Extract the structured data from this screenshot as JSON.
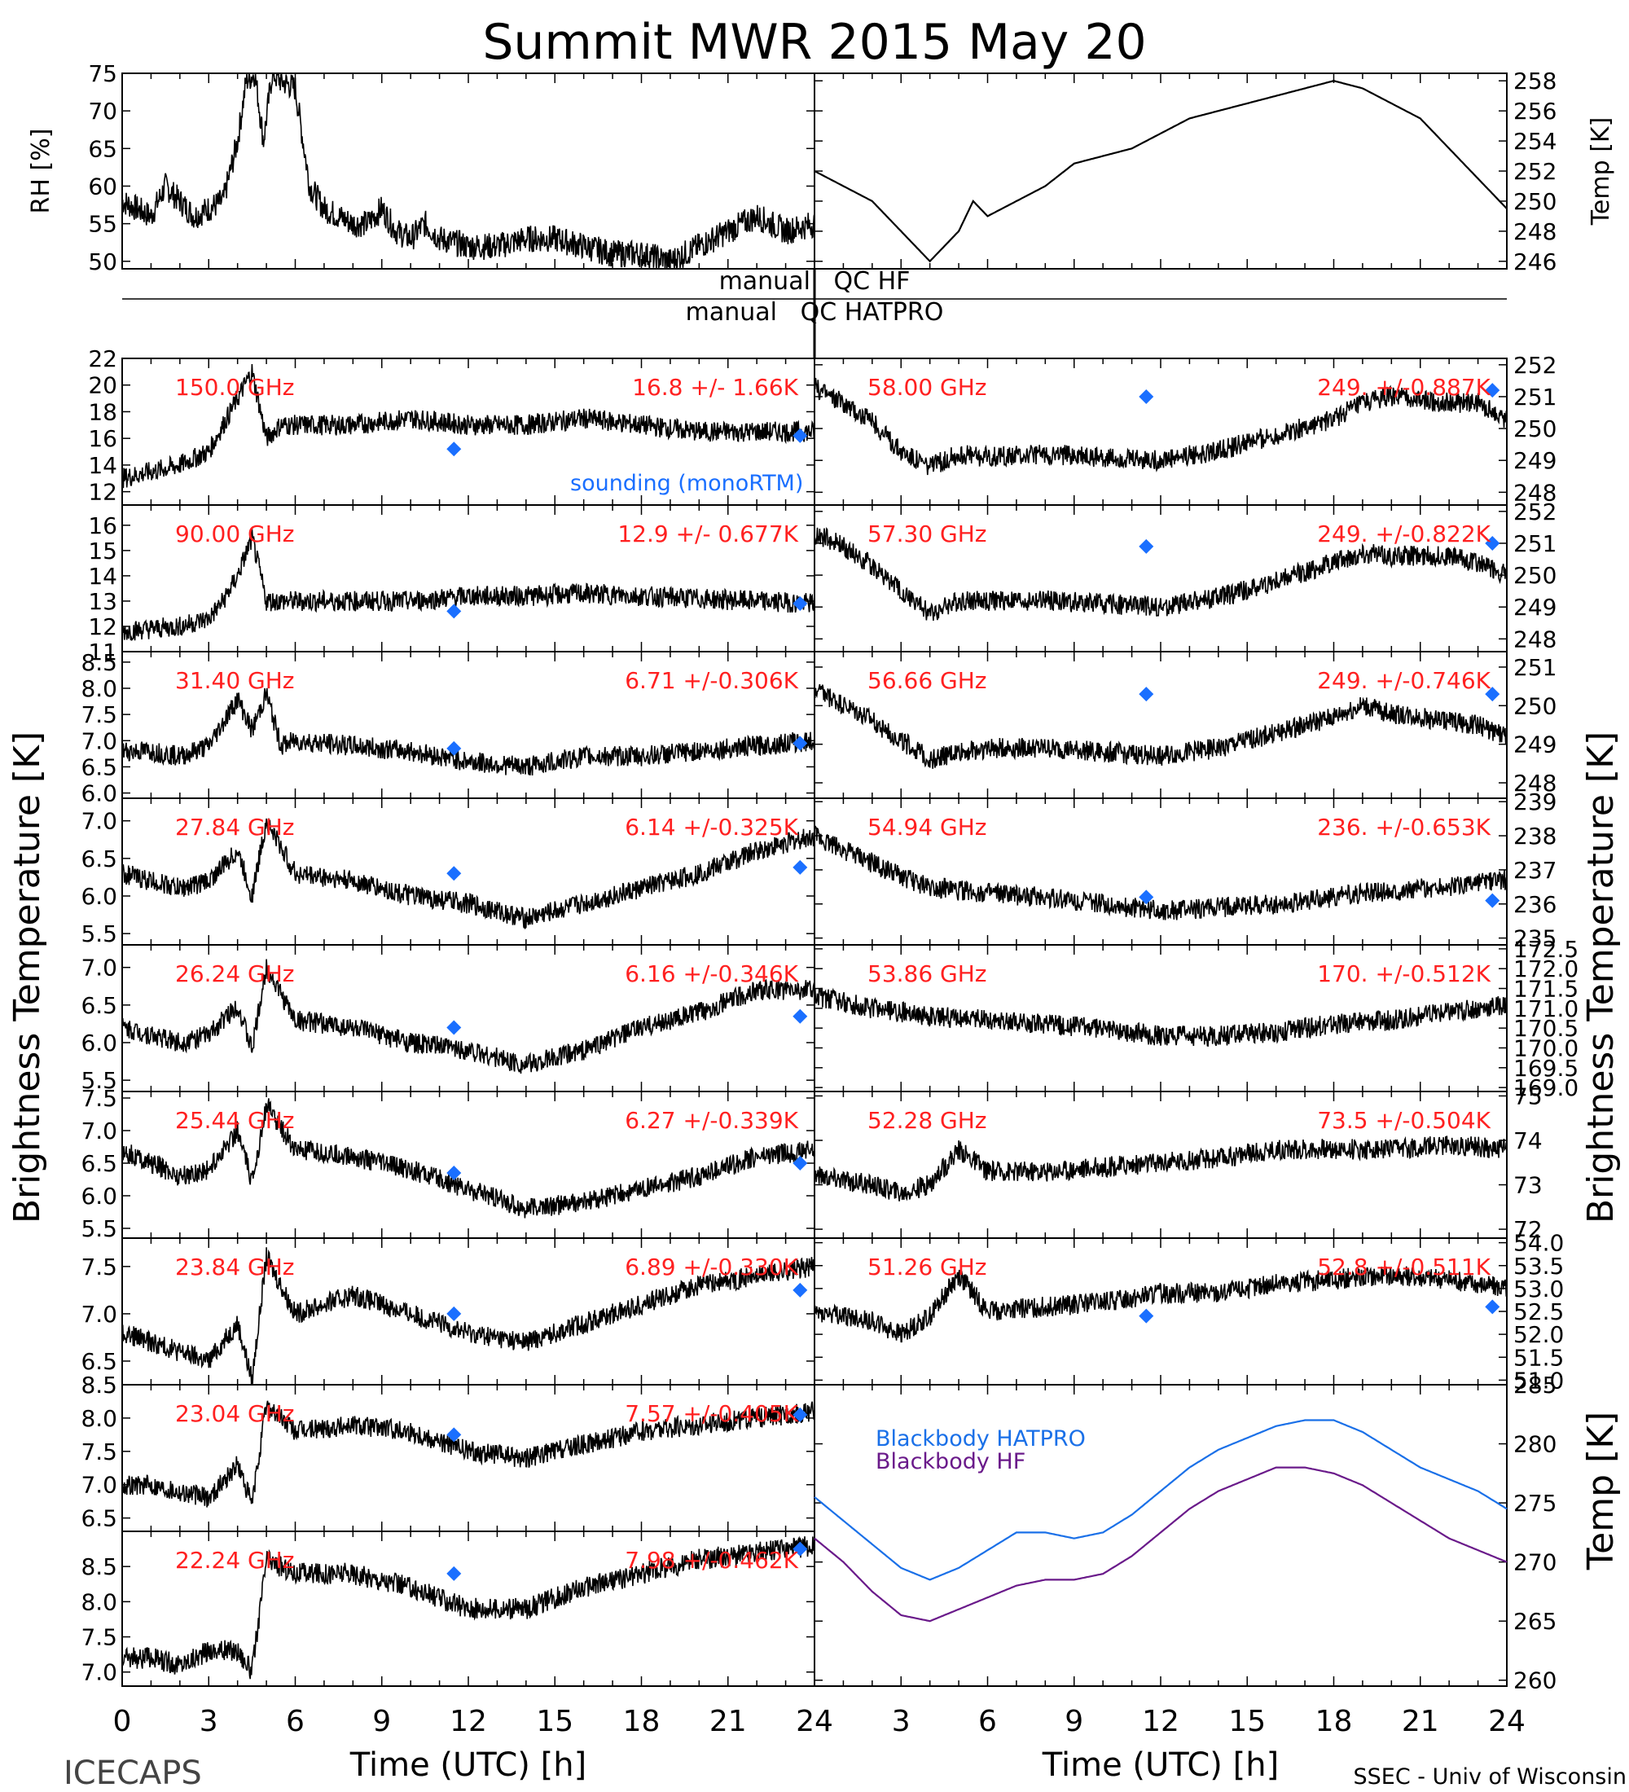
{
  "title": "Summit MWR 2015 May 20",
  "footer_left": "ICECAPS",
  "footer_right": "SSEC - Univ of Wisconsin",
  "colors": {
    "label_red": "#ff2020",
    "sounding_blue": "#1a6fff",
    "bb_hatpro": "#1a70e8",
    "bb_hf": "#6a1a8a",
    "trace": "#000000"
  },
  "qc": {
    "hf": "manual   QC HF",
    "hatpro": "manual   QC HATPRO"
  },
  "x_ticks": [
    "0",
    "3",
    "6",
    "9",
    "12",
    "15",
    "18",
    "21",
    "24"
  ],
  "chart_data": [
    {
      "type": "line",
      "panel": "rh",
      "ylabel": "RH [%]",
      "ylim": [
        49,
        75
      ],
      "yticks": [
        "50",
        "55",
        "60",
        "65",
        "70",
        "75"
      ],
      "side": "left",
      "x": [
        0,
        0.5,
        1,
        1.5,
        2,
        2.5,
        3,
        3.5,
        4,
        4.3,
        4.6,
        4.9,
        5.2,
        5.5,
        6,
        6.5,
        7,
        7.5,
        8,
        8.5,
        9,
        9.5,
        10,
        10.5,
        11,
        12,
        13,
        14,
        15,
        16,
        17,
        18,
        19,
        20,
        21,
        22,
        23,
        24
      ],
      "values": [
        58,
        57,
        56,
        60,
        58,
        56,
        57,
        58,
        66,
        74,
        75,
        66,
        75,
        74,
        73,
        60,
        57,
        56,
        55,
        55,
        57,
        54,
        53,
        55,
        53,
        52,
        52,
        53,
        53,
        52,
        51,
        51,
        50,
        52,
        54,
        56,
        54,
        55
      ]
    },
    {
      "type": "line",
      "panel": "temp",
      "ylabel": "Temp [K]",
      "ylim": [
        245.5,
        258.5
      ],
      "yticks": [
        "246",
        "248",
        "250",
        "252",
        "254",
        "256",
        "258"
      ],
      "side": "right",
      "x": [
        0,
        1,
        2,
        3,
        3.5,
        4,
        4.5,
        5,
        5.5,
        6,
        7,
        8,
        9,
        10,
        11,
        12,
        13,
        14,
        15,
        16,
        17,
        18,
        19,
        20,
        21,
        22,
        23,
        24
      ],
      "values": [
        252,
        251,
        250,
        248,
        247,
        246,
        247,
        248,
        250,
        249,
        250,
        251,
        252.5,
        253,
        253.5,
        254.5,
        255.5,
        256,
        256.5,
        257,
        257.5,
        258,
        257.5,
        256.5,
        255.5,
        253.5,
        251.5,
        249.5
      ]
    },
    {
      "type": "line",
      "panel": "ch_150",
      "freq": "150.0 GHz",
      "stat": "16.8 +/- 1.66K",
      "ylim": [
        11,
        22
      ],
      "yticks": [
        "12",
        "14",
        "16",
        "18",
        "20",
        "22"
      ],
      "side": "left",
      "sounding": [
        [
          11.5,
          15.2
        ],
        [
          23.5,
          16.2
        ]
      ],
      "sounding_label": "sounding (monoRTM)",
      "x": [
        0,
        1,
        2,
        3,
        3.5,
        4,
        4.5,
        5,
        5.5,
        6,
        8,
        10,
        12,
        14,
        16,
        18,
        20,
        22,
        24
      ],
      "values": [
        13,
        13.5,
        14,
        15,
        17,
        19,
        21,
        16,
        17,
        17,
        17,
        17.5,
        17,
        17,
        17.5,
        17,
        16.5,
        16.5,
        16.5
      ]
    },
    {
      "type": "line",
      "panel": "ch_90",
      "freq": "90.00 GHz",
      "stat": "12.9 +/- 0.677K",
      "ylim": [
        11,
        16.8
      ],
      "yticks": [
        "11",
        "12",
        "13",
        "14",
        "15",
        "16"
      ],
      "side": "left",
      "sounding": [
        [
          11.5,
          12.6
        ],
        [
          23.5,
          12.9
        ]
      ],
      "x": [
        0,
        1,
        2,
        3,
        3.5,
        4,
        4.5,
        5,
        5.5,
        6,
        8,
        10,
        12,
        14,
        16,
        18,
        20,
        22,
        24
      ],
      "values": [
        11.8,
        11.9,
        12,
        12.3,
        13,
        14,
        15.5,
        13,
        13,
        13,
        13,
        13,
        13.2,
        13.2,
        13.3,
        13.2,
        13.1,
        13,
        12.9
      ]
    },
    {
      "type": "line",
      "panel": "ch_31",
      "freq": "31.40 GHz",
      "stat": "6.71 +/-0.306K",
      "ylim": [
        5.9,
        8.7
      ],
      "yticks": [
        "6.0",
        "6.5",
        "7.0",
        "7.5",
        "8.0",
        "8.5"
      ],
      "side": "left",
      "sounding": [
        [
          11.5,
          6.85
        ],
        [
          23.5,
          6.95
        ]
      ],
      "x": [
        0,
        1,
        2,
        3,
        4,
        4.5,
        5,
        5.5,
        6,
        8,
        10,
        12,
        14,
        16,
        18,
        20,
        22,
        24
      ],
      "values": [
        6.8,
        6.8,
        6.7,
        6.9,
        7.8,
        7.2,
        7.9,
        6.9,
        7.0,
        6.9,
        6.8,
        6.6,
        6.5,
        6.7,
        6.7,
        6.8,
        6.9,
        7.0
      ]
    },
    {
      "type": "line",
      "panel": "ch_27",
      "freq": "27.84 GHz",
      "stat": "6.14 +/-0.325K",
      "ylim": [
        5.35,
        7.3
      ],
      "yticks": [
        "5.5",
        "6.0",
        "6.5",
        "7.0"
      ],
      "side": "left",
      "sounding": [
        [
          11.5,
          6.3
        ],
        [
          23.5,
          6.38
        ]
      ],
      "x": [
        0,
        1,
        2,
        3,
        4,
        4.5,
        5,
        6,
        8,
        10,
        12,
        14,
        16,
        18,
        20,
        22,
        24
      ],
      "values": [
        6.3,
        6.2,
        6.1,
        6.2,
        6.6,
        6.0,
        7.0,
        6.3,
        6.2,
        6.0,
        5.9,
        5.7,
        5.9,
        6.1,
        6.3,
        6.6,
        6.8
      ]
    },
    {
      "type": "line",
      "panel": "ch_26",
      "freq": "26.24 GHz",
      "stat": "6.16 +/-0.346K",
      "ylim": [
        5.35,
        7.3
      ],
      "yticks": [
        "5.5",
        "6.0",
        "6.5",
        "7.0"
      ],
      "side": "left",
      "sounding": [
        [
          11.5,
          6.2
        ],
        [
          23.5,
          6.35
        ]
      ],
      "x": [
        0,
        1,
        2,
        3,
        4,
        4.5,
        5,
        6,
        8,
        10,
        12,
        14,
        16,
        18,
        20,
        22,
        24
      ],
      "values": [
        6.2,
        6.1,
        6.0,
        6.1,
        6.5,
        5.9,
        7.0,
        6.3,
        6.2,
        6.0,
        5.9,
        5.7,
        5.9,
        6.2,
        6.4,
        6.7,
        6.7
      ]
    },
    {
      "type": "line",
      "panel": "ch_25",
      "freq": "25.44 GHz",
      "stat": "6.27 +/-0.339K",
      "ylim": [
        5.35,
        7.6
      ],
      "yticks": [
        "5.5",
        "6.0",
        "6.5",
        "7.0",
        "7.5"
      ],
      "side": "left",
      "sounding": [
        [
          11.5,
          6.35
        ],
        [
          23.5,
          6.5
        ]
      ],
      "x": [
        0,
        1,
        2,
        3,
        4,
        4.5,
        5,
        6,
        8,
        10,
        12,
        14,
        16,
        18,
        20,
        22,
        24
      ],
      "values": [
        6.7,
        6.5,
        6.3,
        6.4,
        7.0,
        6.2,
        7.4,
        6.7,
        6.6,
        6.4,
        6.1,
        5.8,
        5.9,
        6.1,
        6.3,
        6.6,
        6.7
      ]
    },
    {
      "type": "line",
      "panel": "ch_23_84",
      "freq": "23.84 GHz",
      "stat": "6.89 +/-0.330K",
      "ylim": [
        6.25,
        7.8
      ],
      "yticks": [
        "6.5",
        "7.0",
        "7.5"
      ],
      "side": "left",
      "sounding": [
        [
          11.5,
          7.0
        ],
        [
          23.5,
          7.25
        ]
      ],
      "x": [
        0,
        1,
        2,
        3,
        4,
        4.5,
        5,
        6,
        8,
        10,
        12,
        14,
        16,
        18,
        20,
        22,
        24
      ],
      "values": [
        6.8,
        6.7,
        6.6,
        6.5,
        6.9,
        6.3,
        7.6,
        7.0,
        7.2,
        7.0,
        6.8,
        6.7,
        6.9,
        7.1,
        7.3,
        7.4,
        7.5
      ]
    },
    {
      "type": "line",
      "panel": "ch_23_04",
      "freq": "23.04 GHz",
      "stat": "7.57 +/-0.405K",
      "ylim": [
        6.3,
        8.5
      ],
      "yticks": [
        "6.5",
        "7.0",
        "7.5",
        "8.0",
        "8.5"
      ],
      "side": "left",
      "sounding": [
        [
          11.5,
          7.75
        ],
        [
          23.5,
          8.05
        ]
      ],
      "x": [
        0,
        1,
        2,
        3,
        4,
        4.5,
        5,
        6,
        8,
        10,
        12,
        14,
        16,
        18,
        20,
        22,
        24
      ],
      "values": [
        7.0,
        7.0,
        6.9,
        6.8,
        7.3,
        6.7,
        8.2,
        7.8,
        7.9,
        7.8,
        7.5,
        7.4,
        7.6,
        7.8,
        7.9,
        8.0,
        8.1
      ]
    },
    {
      "type": "line",
      "panel": "ch_22",
      "freq": "22.24 GHz",
      "stat": "7.98 +/-0.462K",
      "ylim": [
        6.8,
        9.0
      ],
      "yticks": [
        "7.0",
        "7.5",
        "8.0",
        "8.5"
      ],
      "side": "left",
      "sounding": [
        [
          11.5,
          8.4
        ],
        [
          23.5,
          8.75
        ]
      ],
      "x": [
        0,
        1,
        2,
        3,
        4,
        4.5,
        5,
        6,
        8,
        10,
        12,
        14,
        16,
        18,
        20,
        22,
        24
      ],
      "values": [
        7.2,
        7.2,
        7.1,
        7.3,
        7.3,
        7.0,
        8.6,
        8.4,
        8.4,
        8.2,
        7.9,
        7.9,
        8.2,
        8.4,
        8.6,
        8.7,
        8.8
      ]
    },
    {
      "type": "line",
      "panel": "ch_58",
      "freq": "58.00 GHz",
      "stat": "249. +/-0.887K",
      "ylim": [
        247.6,
        252.2
      ],
      "yticks": [
        "248",
        "249",
        "250",
        "251",
        "252"
      ],
      "side": "right",
      "sounding": [
        [
          11.5,
          251.0
        ],
        [
          23.5,
          251.2
        ]
      ],
      "x": [
        0,
        1,
        2,
        3,
        4,
        5,
        6,
        8,
        10,
        12,
        14,
        16,
        18,
        19,
        20,
        22,
        23,
        24
      ],
      "values": [
        251.3,
        250.8,
        250.2,
        249.3,
        248.8,
        249.2,
        249.1,
        249.2,
        249.1,
        249.0,
        249.3,
        249.8,
        250.3,
        250.8,
        251.0,
        250.8,
        250.8,
        250.3
      ]
    },
    {
      "type": "line",
      "panel": "ch_57_30",
      "freq": "57.30 GHz",
      "stat": "249. +/-0.822K",
      "ylim": [
        247.6,
        252.2
      ],
      "yticks": [
        "248",
        "249",
        "250",
        "251",
        "252"
      ],
      "side": "right",
      "sounding": [
        [
          11.5,
          250.9
        ],
        [
          23.5,
          251.0
        ]
      ],
      "x": [
        0,
        1,
        2,
        3,
        4,
        5,
        6,
        8,
        10,
        12,
        14,
        16,
        18,
        19,
        20,
        22,
        23,
        24
      ],
      "values": [
        251.3,
        250.9,
        250.3,
        249.5,
        248.8,
        249.2,
        249.2,
        249.2,
        249.1,
        249.0,
        249.3,
        249.8,
        250.4,
        250.7,
        250.6,
        250.6,
        250.4,
        250.0
      ]
    },
    {
      "type": "line",
      "panel": "ch_56",
      "freq": "56.66 GHz",
      "stat": "249. +/-0.746K",
      "ylim": [
        247.6,
        251.4
      ],
      "yticks": [
        "248",
        "249",
        "250",
        "251"
      ],
      "side": "right",
      "sounding": [
        [
          11.5,
          250.3
        ],
        [
          23.5,
          250.3
        ]
      ],
      "x": [
        0,
        1,
        2,
        3,
        4,
        5,
        6,
        8,
        10,
        12,
        14,
        16,
        18,
        19,
        20,
        22,
        23,
        24
      ],
      "values": [
        250.4,
        250.0,
        249.6,
        249.1,
        248.6,
        248.8,
        248.9,
        248.9,
        248.8,
        248.7,
        248.9,
        249.3,
        249.7,
        250.0,
        249.8,
        249.6,
        249.5,
        249.2
      ]
    },
    {
      "type": "line",
      "panel": "ch_54",
      "freq": "54.94 GHz",
      "stat": "236. +/-0.653K",
      "ylim": [
        234.8,
        239.1
      ],
      "yticks": [
        "235",
        "236",
        "237",
        "238",
        "239"
      ],
      "side": "right",
      "sounding": [
        [
          11.5,
          236.2
        ],
        [
          23.5,
          236.1
        ]
      ],
      "x": [
        0,
        1,
        2,
        3,
        4,
        6,
        8,
        10,
        12,
        14,
        16,
        18,
        20,
        22,
        24
      ],
      "values": [
        238.0,
        237.6,
        237.2,
        236.8,
        236.5,
        236.3,
        236.2,
        236.0,
        235.8,
        235.9,
        236.0,
        236.2,
        236.4,
        236.5,
        236.7
      ]
    },
    {
      "type": "line",
      "panel": "ch_53",
      "freq": "53.86 GHz",
      "stat": "170. +/-0.512K",
      "ylim": [
        168.9,
        172.6
      ],
      "yticks": [
        "172.5",
        "172.0",
        "171.5",
        "171.0",
        "170.5",
        "170.0",
        "169.5",
        "169.0"
      ],
      "side": "right",
      "x": [
        0,
        2,
        4,
        6,
        8,
        10,
        12,
        14,
        16,
        18,
        20,
        22,
        24
      ],
      "values": [
        171.3,
        171.0,
        170.8,
        170.7,
        170.6,
        170.5,
        170.3,
        170.3,
        170.4,
        170.6,
        170.7,
        170.9,
        171.1
      ]
    },
    {
      "type": "line",
      "panel": "ch_52",
      "freq": "52.28 GHz",
      "stat": "73.5 +/-0.504K",
      "ylim": [
        71.8,
        75.1
      ],
      "yticks": [
        "72",
        "73",
        "74",
        "75"
      ],
      "side": "right",
      "x": [
        0,
        2,
        3,
        4,
        5,
        6,
        8,
        10,
        12,
        14,
        16,
        18,
        20,
        22,
        24
      ],
      "values": [
        73.2,
        73.0,
        72.8,
        73.0,
        73.8,
        73.3,
        73.3,
        73.4,
        73.5,
        73.6,
        73.8,
        73.8,
        73.8,
        73.9,
        73.8
      ]
    },
    {
      "type": "line",
      "panel": "ch_51",
      "freq": "51.26 GHz",
      "stat": "52.8 +/-0.511K",
      "ylim": [
        50.9,
        54.1
      ],
      "yticks": [
        "54.0",
        "53.5",
        "53.0",
        "52.5",
        "52.0",
        "51.5",
        "51.0"
      ],
      "side": "right",
      "sounding": [
        [
          11.5,
          52.4
        ],
        [
          23.5,
          52.6
        ]
      ],
      "x": [
        0,
        2,
        3,
        4,
        5,
        6,
        8,
        10,
        12,
        14,
        16,
        18,
        20,
        22,
        24
      ],
      "values": [
        52.5,
        52.3,
        52.0,
        52.4,
        53.3,
        52.5,
        52.6,
        52.7,
        52.9,
        52.9,
        53.1,
        53.2,
        53.3,
        53.2,
        53.0
      ]
    },
    {
      "type": "line",
      "panel": "blackbody",
      "ylabel": "Temp [K]",
      "ylim": [
        259.5,
        285
      ],
      "yticks": [
        "260",
        "265",
        "270",
        "275",
        "280",
        "285"
      ],
      "side": "right",
      "series": [
        {
          "name": "Blackbody HATPRO",
          "x": [
            0,
            1,
            2,
            3,
            4,
            5,
            6,
            7,
            8,
            9,
            10,
            11,
            12,
            13,
            14,
            15,
            16,
            17,
            18,
            19,
            20,
            21,
            22,
            23,
            24
          ],
          "values": [
            275.5,
            273.5,
            271.5,
            269.5,
            268.5,
            269.5,
            271,
            272.5,
            272.5,
            272,
            272.5,
            274,
            276,
            278,
            279.5,
            280.5,
            281.5,
            282,
            282,
            281,
            279.5,
            278,
            277,
            276,
            274.5
          ]
        },
        {
          "name": "Blackbody HF",
          "x": [
            0,
            1,
            2,
            3,
            4,
            5,
            6,
            7,
            8,
            9,
            10,
            11,
            12,
            13,
            14,
            15,
            16,
            17,
            18,
            19,
            20,
            21,
            22,
            23,
            24
          ],
          "values": [
            272,
            270,
            267.5,
            265.5,
            265,
            266,
            267,
            268,
            268.5,
            268.5,
            269,
            270.5,
            272.5,
            274.5,
            276,
            277,
            278,
            278,
            277.5,
            276.5,
            275,
            273.5,
            272,
            271,
            270
          ]
        }
      ]
    }
  ],
  "axis_labels": {
    "left_bt": "Brightness Temperature [K]",
    "right_bt": "Brightness Temperature [K]",
    "right_temp": "Temp [K]",
    "xlabel": "Time (UTC) [h]"
  }
}
